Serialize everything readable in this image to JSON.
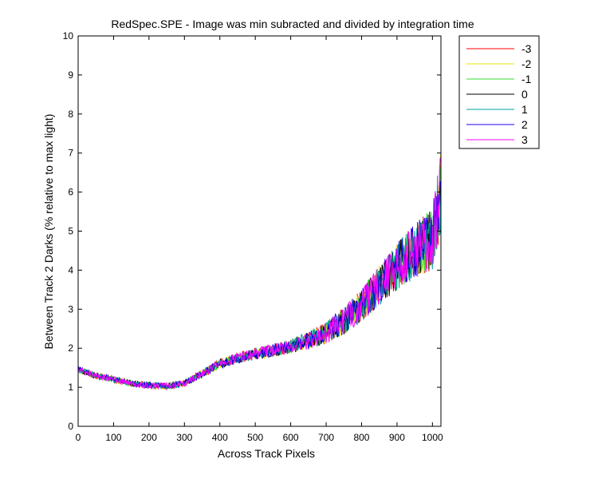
{
  "chart_data": {
    "type": "line",
    "title": "RedSpec.SPE - Image was min subracted and divided by integration time",
    "xlabel": "Across Track Pixels",
    "ylabel": "Between Track 2 Darks (% relative to max light)",
    "xlim": [
      0,
      1024
    ],
    "ylim": [
      0,
      10
    ],
    "xticks": [
      0,
      100,
      200,
      300,
      400,
      500,
      600,
      700,
      800,
      900,
      1000
    ],
    "yticks": [
      0,
      1,
      2,
      3,
      4,
      5,
      6,
      7,
      8,
      9,
      10
    ],
    "grid": false,
    "legend_position": "outside-top-right",
    "trend": {
      "x": [
        0,
        50,
        100,
        150,
        200,
        250,
        300,
        350,
        400,
        450,
        500,
        550,
        600,
        650,
        700,
        750,
        800,
        850,
        900,
        950,
        1000,
        1024
      ],
      "y": [
        1.45,
        1.3,
        1.2,
        1.1,
        1.05,
        1.03,
        1.1,
        1.35,
        1.6,
        1.75,
        1.85,
        1.95,
        2.05,
        2.2,
        2.4,
        2.7,
        3.1,
        3.6,
        4.1,
        4.5,
        4.8,
        6.0
      ]
    },
    "noise": {
      "x": [
        0,
        300,
        400,
        600,
        700,
        800,
        900,
        1000,
        1024
      ],
      "amplitude": [
        0.08,
        0.08,
        0.12,
        0.18,
        0.28,
        0.42,
        0.6,
        0.8,
        1.1
      ]
    },
    "series": [
      {
        "name": "-3",
        "color": "#ff0000"
      },
      {
        "name": "-2",
        "color": "#e6e600"
      },
      {
        "name": "-1",
        "color": "#33dd33"
      },
      {
        "name": "0",
        "color": "#000000"
      },
      {
        "name": "1",
        "color": "#00a0a0"
      },
      {
        "name": "2",
        "color": "#2200ee"
      },
      {
        "name": "3",
        "color": "#ff00ff"
      }
    ]
  }
}
